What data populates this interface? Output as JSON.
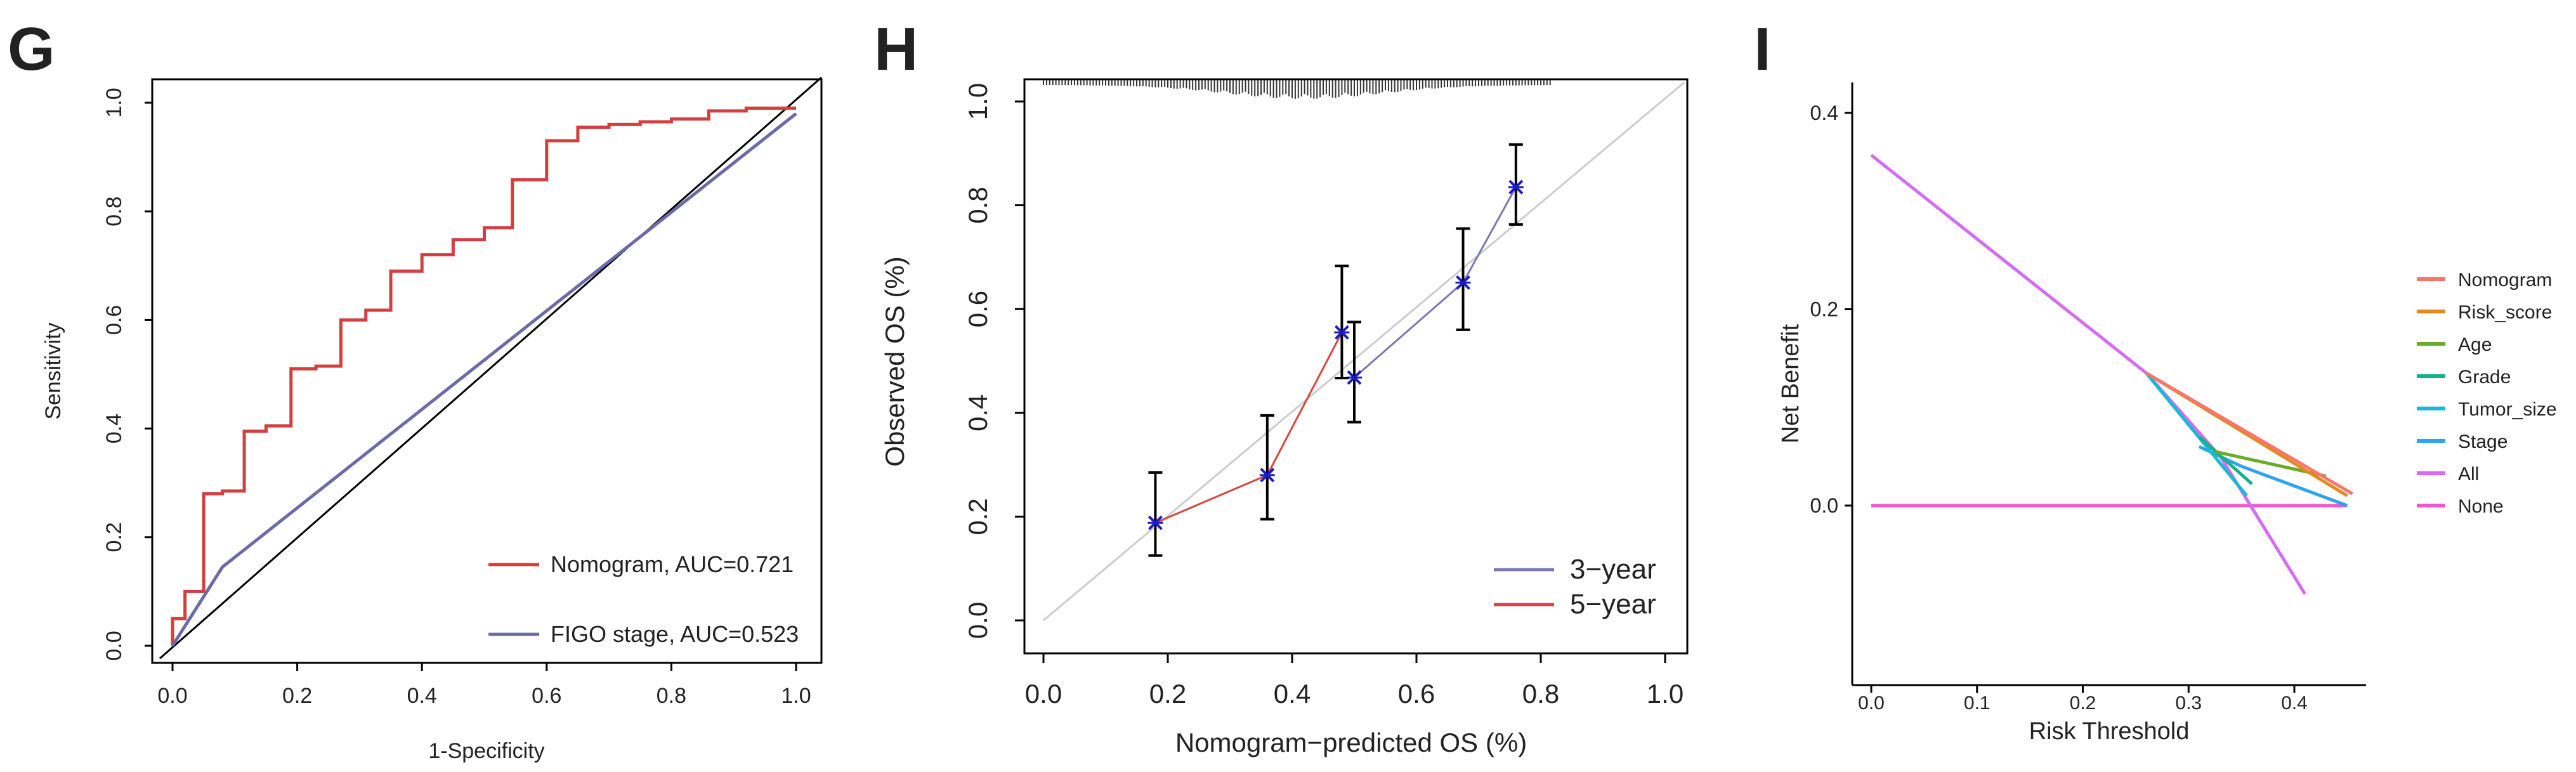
{
  "chart_data": [
    {
      "panel_letter": "G",
      "type": "line",
      "title": "",
      "xlabel": "1-Specificity",
      "ylabel": "Sensitivity",
      "xlim": [
        0,
        1
      ],
      "ylim": [
        0,
        1
      ],
      "x_ticks": [
        "0.0",
        "0.2",
        "0.4",
        "0.6",
        "0.8",
        "1.0"
      ],
      "y_ticks": [
        "0.0",
        "0.2",
        "0.4",
        "0.6",
        "0.8",
        "1.0"
      ],
      "legend_position": "bottom-right",
      "series": [
        {
          "name": "Nomogram, AUC=0.721",
          "color": "#d33f3f",
          "step": true,
          "points": [
            [
              0,
              0
            ],
            [
              0,
              0.05
            ],
            [
              0.02,
              0.05
            ],
            [
              0.02,
              0.1
            ],
            [
              0.05,
              0.1
            ],
            [
              0.05,
              0.28
            ],
            [
              0.08,
              0.28
            ],
            [
              0.08,
              0.285
            ],
            [
              0.115,
              0.285
            ],
            [
              0.115,
              0.395
            ],
            [
              0.15,
              0.395
            ],
            [
              0.15,
              0.405
            ],
            [
              0.19,
              0.405
            ],
            [
              0.19,
              0.51
            ],
            [
              0.23,
              0.51
            ],
            [
              0.23,
              0.515
            ],
            [
              0.27,
              0.515
            ],
            [
              0.27,
              0.6
            ],
            [
              0.31,
              0.6
            ],
            [
              0.31,
              0.618
            ],
            [
              0.35,
              0.618
            ],
            [
              0.35,
              0.69
            ],
            [
              0.4,
              0.69
            ],
            [
              0.4,
              0.72
            ],
            [
              0.45,
              0.72
            ],
            [
              0.45,
              0.748
            ],
            [
              0.5,
              0.748
            ],
            [
              0.5,
              0.77
            ],
            [
              0.545,
              0.77
            ],
            [
              0.545,
              0.858
            ],
            [
              0.6,
              0.858
            ],
            [
              0.6,
              0.93
            ],
            [
              0.65,
              0.93
            ],
            [
              0.65,
              0.955
            ],
            [
              0.7,
              0.955
            ],
            [
              0.7,
              0.96
            ],
            [
              0.75,
              0.96
            ],
            [
              0.75,
              0.965
            ],
            [
              0.8,
              0.965
            ],
            [
              0.8,
              0.97
            ],
            [
              0.86,
              0.97
            ],
            [
              0.86,
              0.985
            ],
            [
              0.92,
              0.985
            ],
            [
              0.92,
              0.99
            ],
            [
              1,
              0.99
            ]
          ]
        },
        {
          "name": "FIGO stage, AUC=0.523",
          "color": "#6b6aa8",
          "step": false,
          "points": [
            [
              0,
              0
            ],
            [
              0.08,
              0.145
            ],
            [
              1,
              0.98
            ]
          ]
        }
      ],
      "reference_line": {
        "points": [
          [
            0,
            0
          ],
          [
            1,
            1
          ]
        ],
        "color": "#000000"
      }
    },
    {
      "panel_letter": "H",
      "type": "line",
      "title": "",
      "xlabel": "Nomogram−predicted OS (%)",
      "ylabel": "Observed OS (%)",
      "xlim": [
        0,
        1
      ],
      "ylim": [
        0,
        1
      ],
      "x_ticks": [
        "0.0",
        "0.2",
        "0.4",
        "0.6",
        "0.8",
        "1.0"
      ],
      "y_ticks": [
        "0.0",
        "0.2",
        "0.4",
        "0.6",
        "0.8",
        "1.0"
      ],
      "legend_position": "bottom-right",
      "reference_line": {
        "points": [
          [
            0,
            0
          ],
          [
            1,
            1
          ]
        ],
        "color": "#cccccc"
      },
      "series": [
        {
          "name": "3−year",
          "color": "#7a78b0",
          "points": [
            [
              0.5,
              0.468
            ],
            [
              0.675,
              0.651
            ],
            [
              0.76,
              0.835
            ]
          ],
          "error_low": [
            0.382,
            0.56,
            0.763
          ],
          "error_high": [
            0.575,
            0.755,
            0.917
          ]
        },
        {
          "name": "5−year",
          "color": "#d9463e",
          "points": [
            [
              0.18,
              0.188
            ],
            [
              0.36,
              0.28
            ],
            [
              0.48,
              0.555
            ]
          ],
          "error_low": [
            0.125,
            0.195,
            0.467
          ],
          "error_high": [
            0.285,
            0.395,
            0.683
          ]
        }
      ],
      "rug_range": [
        0.0,
        0.82
      ]
    },
    {
      "panel_letter": "I",
      "type": "line",
      "title": "",
      "xlabel": "Risk Threshold",
      "ylabel": "Net Benefit",
      "xlim": [
        0,
        0.46
      ],
      "ylim": [
        -0.18,
        0.42
      ],
      "x_ticks": [
        "0.0",
        "0.1",
        "0.2",
        "0.3",
        "0.4"
      ],
      "y_ticks": [
        "0.0",
        "0.2",
        "0.4"
      ],
      "x_tick_values": [
        0,
        0.1,
        0.2,
        0.3,
        0.4
      ],
      "y_tick_values": [
        0,
        0.2,
        0.4
      ],
      "legend_position": "right",
      "series": [
        {
          "name": "Nomogram",
          "color": "#f8766d",
          "points": [
            [
              0.26,
              0.135
            ],
            [
              0.455,
              0.012
            ]
          ]
        },
        {
          "name": "Risk_score",
          "color": "#e5891a",
          "points": [
            [
              0.26,
              0.135
            ],
            [
              0.45,
              0.01
            ]
          ]
        },
        {
          "name": "Age",
          "color": "#6aac2a",
          "points": [
            [
              0.325,
              0.055
            ],
            [
              0.43,
              0.03
            ]
          ]
        },
        {
          "name": "Grade",
          "color": "#13b38a",
          "points": [
            [
              0.31,
              0.07
            ],
            [
              0.36,
              0.022
            ]
          ]
        },
        {
          "name": "Tumor_size",
          "color": "#14bbd4",
          "points": [
            [
              0.26,
              0.135
            ],
            [
              0.355,
              0.01
            ]
          ]
        },
        {
          "name": "Stage",
          "color": "#2da3ee",
          "points": [
            [
              0.31,
              0.06
            ],
            [
              0.35,
              0.04
            ],
            [
              0.45,
              0.0
            ]
          ]
        },
        {
          "name": "All",
          "color": "#d66bf3",
          "points": [
            [
              0,
              0.357
            ],
            [
              0.26,
              0.135
            ],
            [
              0.33,
              0.05
            ],
            [
              0.41,
              -0.09
            ]
          ]
        },
        {
          "name": "None",
          "color": "#ef57cf",
          "points": [
            [
              0,
              0
            ],
            [
              0.45,
              0
            ]
          ]
        }
      ]
    }
  ]
}
